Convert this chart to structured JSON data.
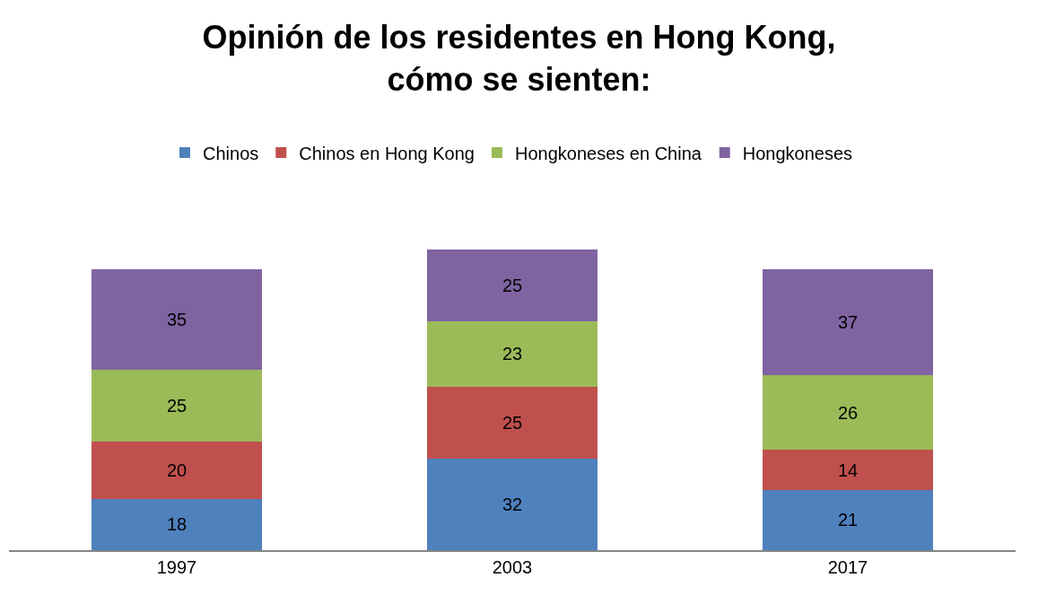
{
  "chart_data": {
    "type": "bar",
    "title": "Opinión de los residentes en Hong Kong,\ncómo se sienten:",
    "categories": [
      "1997",
      "2003",
      "2017"
    ],
    "stacked": true,
    "data_labels": true,
    "legend": "top",
    "tick_labels": "x",
    "grid": false,
    "series": [
      {
        "name": "Chinos",
        "color": "#4f81bd",
        "values": [
          18,
          32,
          21
        ]
      },
      {
        "name": "Chinos en Hong Kong",
        "color": "#c0504d",
        "values": [
          20,
          25,
          14
        ]
      },
      {
        "name": "Hongkoneses en China",
        "color": "#9bbb59",
        "values": [
          25,
          23,
          26
        ]
      },
      {
        "name": "Hongkoneses",
        "color": "#8064a2",
        "values": [
          35,
          25,
          37
        ]
      }
    ]
  }
}
